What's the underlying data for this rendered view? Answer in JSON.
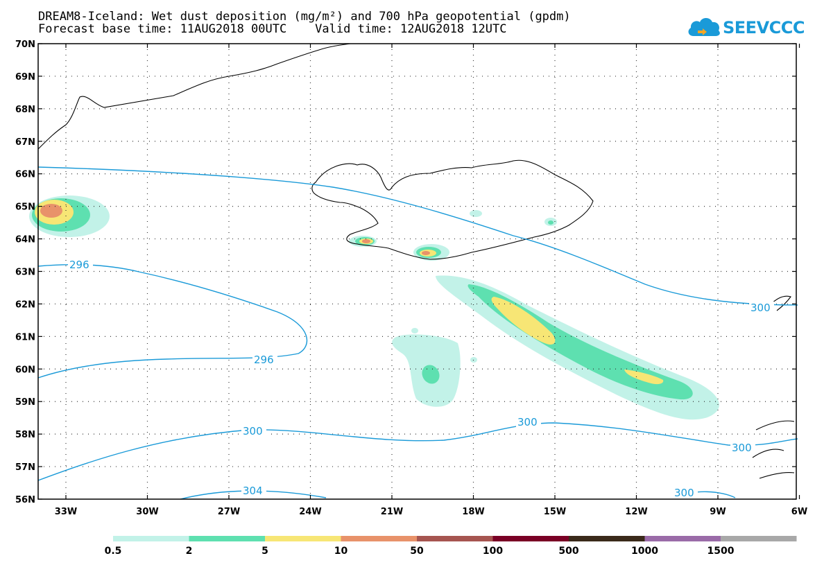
{
  "header": {
    "title_line1": "DREAM8-Iceland: Wet dust deposition (mg/m²) and 700 hPa geopotential (gpdm)",
    "title_line2": "Forecast base time: 11AUG2018 00UTC    Valid time: 12AUG2018 12UTC"
  },
  "logo": {
    "text": "SEEVCCC",
    "icon": "cloud-icon",
    "color": "#1a9ad8"
  },
  "map": {
    "lat_labels": [
      "70N",
      "69N",
      "68N",
      "67N",
      "66N",
      "65N",
      "64N",
      "63N",
      "62N",
      "61N",
      "60N",
      "59N",
      "58N",
      "57N",
      "56N"
    ],
    "lon_labels": [
      "33W",
      "30W",
      "27W",
      "24W",
      "21W",
      "18W",
      "15W",
      "12W",
      "9W",
      "6W"
    ],
    "contour_labels": [
      {
        "text": "296",
        "id": "c296a"
      },
      {
        "text": "296",
        "id": "c296b"
      },
      {
        "text": "300",
        "id": "c300a"
      },
      {
        "text": "300",
        "id": "c300b"
      },
      {
        "text": "300",
        "id": "c300c"
      },
      {
        "text": "300",
        "id": "c300d"
      },
      {
        "text": "304",
        "id": "c304"
      }
    ],
    "contour_color": "#1a9ad8"
  },
  "colorbar": {
    "labels": [
      "0.5",
      "2",
      "5",
      "10",
      "50",
      "100",
      "500",
      "1000",
      "1500"
    ],
    "colors": [
      "#c2f2e8",
      "#5ee0b0",
      "#f7e675",
      "#e8926a",
      "#a65550",
      "#7a0025",
      "#3a2a1a",
      "#9a6ba8",
      "#a8a8a8"
    ]
  }
}
